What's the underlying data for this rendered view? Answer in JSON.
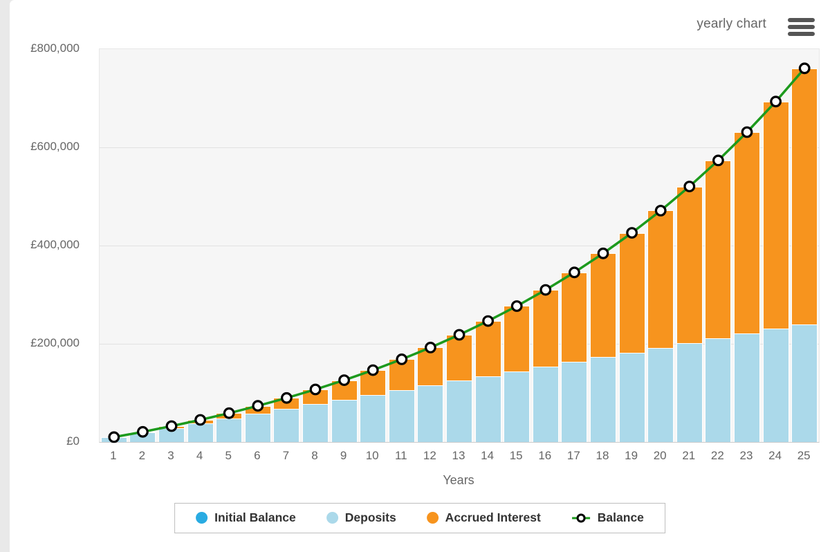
{
  "header": {
    "title": "yearly chart",
    "menu_icon": "hamburger-menu-icon"
  },
  "chart_data": {
    "type": "bar",
    "subtype": "stacked-column-with-line",
    "title": "",
    "xlabel": "Years",
    "ylabel": "",
    "x": [
      1,
      2,
      3,
      4,
      5,
      6,
      7,
      8,
      9,
      10,
      11,
      12,
      13,
      14,
      15,
      16,
      17,
      18,
      19,
      20,
      21,
      22,
      23,
      24,
      25
    ],
    "ylim": [
      0,
      800000
    ],
    "y_tick_values": [
      0,
      200000,
      400000,
      600000,
      800000
    ],
    "y_ticks": [
      "£0",
      "£200,000",
      "£400,000",
      "£600,000",
      "£800,000"
    ],
    "grid": true,
    "legend_position": "bottom",
    "currency": "£",
    "series": [
      {
        "name": "Initial Balance",
        "type": "bar",
        "color": "#29abe2",
        "values": [
          0,
          0,
          0,
          0,
          0,
          0,
          0,
          0,
          0,
          0,
          0,
          0,
          0,
          0,
          0,
          0,
          0,
          0,
          0,
          0,
          0,
          0,
          0,
          0,
          0
        ]
      },
      {
        "name": "Deposits",
        "type": "bar",
        "color": "#abd9ea",
        "values": [
          9600,
          19200,
          28800,
          38400,
          48000,
          57600,
          67200,
          76800,
          86400,
          96000,
          105600,
          115200,
          124800,
          134400,
          144000,
          153600,
          163200,
          172800,
          182400,
          192000,
          201600,
          211200,
          220800,
          230400,
          240000
        ]
      },
      {
        "name": "Accrued Interest",
        "type": "bar",
        "color": "#f7941e",
        "values": [
          360,
          1547,
          3629,
          6680,
          10782,
          16009,
          22478,
          30282,
          39530,
          50342,
          62848,
          77189,
          93518,
          111998,
          132809,
          156144,
          182213,
          211242,
          243477,
          279185,
          318654,
          362195,
          410146,
          462875,
          520777
        ]
      },
      {
        "name": "Balance",
        "type": "line",
        "color": "#1d9a1d",
        "marker": {
          "fill": "#ffffff",
          "stroke": "#000000"
        },
        "values": [
          9960,
          20747,
          32429,
          45080,
          58782,
          73609,
          89678,
          107082,
          125930,
          146342,
          168448,
          192389,
          218318,
          246398,
          276809,
          309744,
          345413,
          384042,
          425877,
          471185,
          520254,
          573395,
          630946,
          693275,
          760777
        ]
      }
    ],
    "style": {
      "plot_bg": "#f6f6f6",
      "grid_color": "#e2e2e2",
      "axis_line_color": "#cccccc",
      "axis_label_color": "#666666",
      "legend_text_color": "#333333"
    }
  }
}
